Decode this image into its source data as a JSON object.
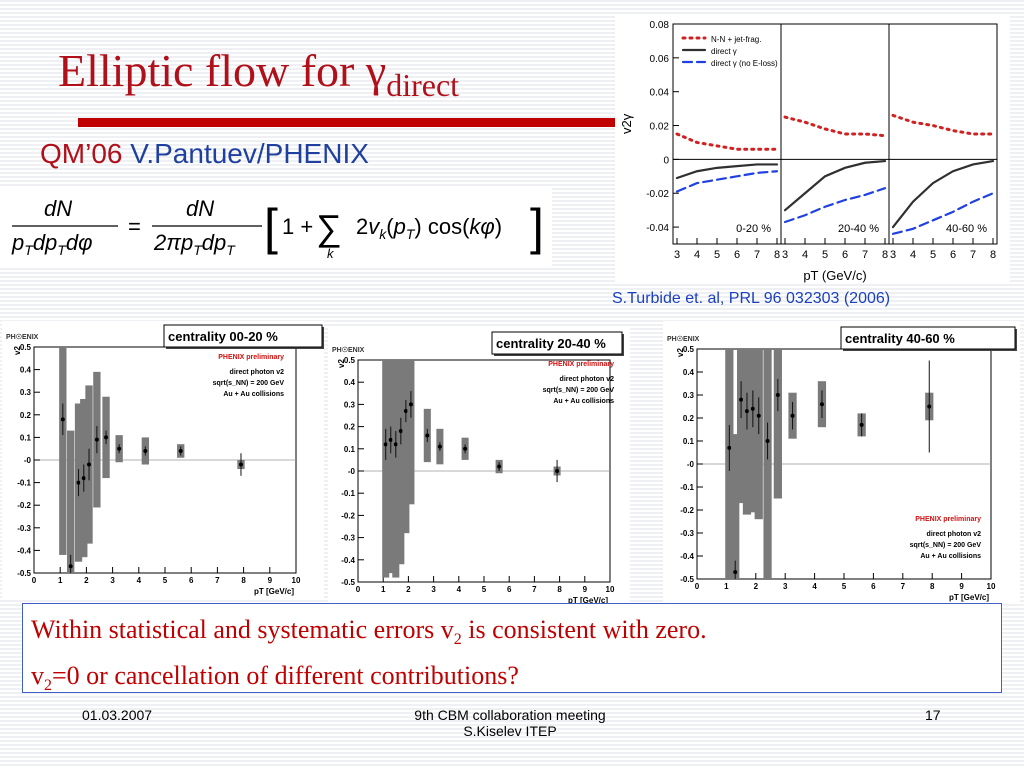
{
  "slide": {
    "title_main": "Elliptic flow for γ",
    "title_sub": "direct",
    "subtitle_conf": "QM’06",
    "subtitle_author": "V.Pantuev/PHENIX",
    "formula": {
      "lhs_num": "dN",
      "lhs_den": "p",
      "rhs_num": "dN",
      "rhs_den": "2πp"
    },
    "citation": "S.Turbide et. al, PRL 96 032303 (2006)",
    "conclusion_line1_a": "Within statistical and systematic errors v",
    "conclusion_line1_sub": "2",
    "conclusion_line1_b": " is consistent with zero.",
    "conclusion_line2_a": "v",
    "conclusion_line2_sub": "2",
    "conclusion_line2_b": "=0 or cancellation of different contributions?",
    "footer_date": "01.03.2007",
    "footer_meeting_line1": "9th CBM collaboration meeting",
    "footer_meeting_line2": "S.Kiselev ITEP",
    "footer_page": "17",
    "colors": {
      "title": "#b0101a",
      "conclusion": "#c00000",
      "citation": "#1a3fbf",
      "box_border": "#4060c8"
    }
  },
  "chart_data": [
    {
      "type": "line",
      "ylabel": "v2γ",
      "xlabel": "pT (GeV/c)",
      "ylim": [
        -0.05,
        0.08
      ],
      "yticks": [
        -0.04,
        -0.02,
        0,
        0.02,
        0.04,
        0.06,
        0.08
      ],
      "ytick_labels": [
        "-0.04",
        "-0.02",
        "0",
        "0.02",
        "0.04",
        "0.06",
        "0.08"
      ],
      "xlim": [
        3,
        8
      ],
      "xticks": [
        3,
        4,
        5,
        6,
        7,
        8
      ],
      "legend": [
        "N-N + jet-frag.",
        "direct γ",
        "direct γ (no E-loss)"
      ],
      "panels": [
        {
          "label": "0-20 %",
          "series": [
            {
              "name": "N-N + jet-frag.",
              "x": [
                3,
                4,
                5,
                6,
                7,
                8
              ],
              "y": [
                0.015,
                0.01,
                0.008,
                0.006,
                0.006,
                0.006
              ]
            },
            {
              "name": "direct γ",
              "x": [
                3,
                4,
                5,
                6,
                7,
                8
              ],
              "y": [
                -0.011,
                -0.007,
                -0.005,
                -0.004,
                -0.003,
                -0.003
              ]
            },
            {
              "name": "direct γ (no E-loss)",
              "x": [
                3,
                4,
                5,
                6,
                7,
                8
              ],
              "y": [
                -0.019,
                -0.014,
                -0.012,
                -0.01,
                -0.008,
                -0.007
              ]
            }
          ]
        },
        {
          "label": "20-40 %",
          "series": [
            {
              "name": "N-N + jet-frag.",
              "x": [
                3,
                4,
                5,
                6,
                7,
                8
              ],
              "y": [
                0.025,
                0.022,
                0.018,
                0.015,
                0.015,
                0.014
              ]
            },
            {
              "name": "direct γ",
              "x": [
                3,
                4,
                5,
                6,
                7,
                8
              ],
              "y": [
                -0.03,
                -0.02,
                -0.01,
                -0.005,
                -0.002,
                -0.001
              ]
            },
            {
              "name": "direct γ (no E-loss)",
              "x": [
                3,
                4,
                5,
                6,
                7,
                8
              ],
              "y": [
                -0.037,
                -0.033,
                -0.028,
                -0.024,
                -0.021,
                -0.017
              ]
            }
          ]
        },
        {
          "label": "40-60 %",
          "series": [
            {
              "name": "N-N + jet-frag.",
              "x": [
                3,
                4,
                5,
                6,
                7,
                8
              ],
              "y": [
                0.026,
                0.022,
                0.02,
                0.017,
                0.015,
                0.015
              ]
            },
            {
              "name": "direct γ",
              "x": [
                3,
                4,
                5,
                6,
                7,
                8
              ],
              "y": [
                -0.04,
                -0.025,
                -0.014,
                -0.007,
                -0.003,
                -0.001
              ]
            },
            {
              "name": "direct γ (no E-loss)",
              "x": [
                3,
                4,
                5,
                6,
                7,
                8
              ],
              "y": [
                -0.044,
                -0.041,
                -0.036,
                -0.031,
                -0.025,
                -0.02
              ]
            }
          ]
        }
      ]
    },
    {
      "type": "scatter",
      "title": "centrality 00-20 %",
      "xlabel": "pT [GeV/c]",
      "ylabel": "v2",
      "xlim": [
        0,
        10
      ],
      "ylim": [
        -0.5,
        0.5
      ],
      "annotations": [
        "PHENIX preliminary",
        "direct photon v2",
        "sqrt(s_NN) = 200 GeV",
        "Au + Au collisions"
      ],
      "x": [
        1.1,
        1.4,
        1.7,
        1.9,
        2.1,
        2.4,
        2.75,
        3.25,
        4.25,
        5.6,
        7.9
      ],
      "y": [
        0.18,
        -0.47,
        -0.1,
        -0.08,
        -0.02,
        0.09,
        0.1,
        0.05,
        0.04,
        0.04,
        -0.02
      ],
      "stat": [
        0.07,
        0.05,
        0.06,
        0.06,
        0.07,
        0.06,
        0.03,
        0.02,
        0.02,
        0.02,
        0.05
      ],
      "sys": [
        0.6,
        0.6,
        0.35,
        0.35,
        0.35,
        0.3,
        0.18,
        0.06,
        0.06,
        0.03,
        0.02
      ]
    },
    {
      "type": "scatter",
      "title": "centrality 20-40 %",
      "xlabel": "pT [GeV/c]",
      "ylabel": "v2",
      "xlim": [
        0,
        10
      ],
      "ylim": [
        -0.5,
        0.5
      ],
      "annotations": [
        "PHENIX preliminary",
        "direct photon v2",
        "sqrt(s_NN) = 200 GeV",
        "Au + Au collisions"
      ],
      "x": [
        1.1,
        1.3,
        1.5,
        1.7,
        1.9,
        2.1,
        2.75,
        3.25,
        4.25,
        5.6,
        7.9
      ],
      "y": [
        0.12,
        0.14,
        0.12,
        0.18,
        0.27,
        0.3,
        0.16,
        0.11,
        0.1,
        0.02,
        0.0
      ],
      "stat": [
        0.07,
        0.06,
        0.06,
        0.06,
        0.05,
        0.06,
        0.03,
        0.02,
        0.02,
        0.02,
        0.05
      ],
      "sys": [
        0.6,
        0.6,
        0.6,
        0.6,
        0.55,
        0.45,
        0.12,
        0.08,
        0.05,
        0.03,
        0.02
      ]
    },
    {
      "type": "scatter",
      "title": "centrality 40-60 %",
      "xlabel": "pT [GeV/c]",
      "ylabel": "v2",
      "xlim": [
        0,
        10
      ],
      "ylim": [
        -0.5,
        0.5
      ],
      "annotations": [
        "PHENIX preliminary",
        "direct photon v2",
        "sqrt(s_NN) = 200 GeV",
        "Au + Au collisions"
      ],
      "x": [
        1.1,
        1.3,
        1.5,
        1.7,
        1.9,
        2.1,
        2.4,
        2.75,
        3.25,
        4.25,
        5.6,
        7.9
      ],
      "y": [
        0.07,
        -0.47,
        0.28,
        0.23,
        0.24,
        0.21,
        0.1,
        0.3,
        0.21,
        0.26,
        0.17,
        0.25
      ],
      "stat": [
        0.1,
        0.05,
        0.08,
        0.08,
        0.08,
        0.08,
        0.08,
        0.07,
        0.06,
        0.06,
        0.05,
        0.2
      ],
      "sys": [
        0.6,
        0.6,
        0.45,
        0.45,
        0.45,
        0.45,
        0.6,
        0.45,
        0.1,
        0.1,
        0.05,
        0.06
      ]
    }
  ]
}
